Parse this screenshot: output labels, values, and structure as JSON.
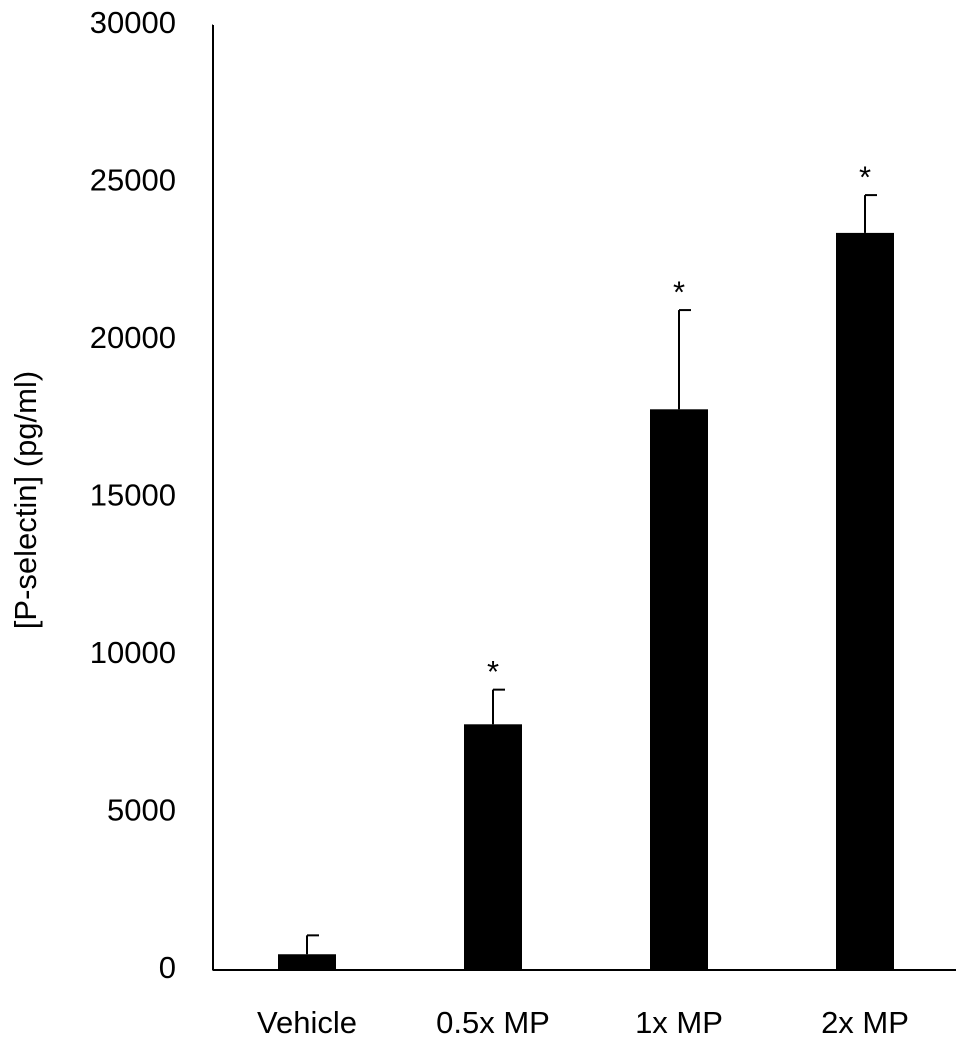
{
  "chart_data": {
    "type": "bar",
    "y_label": "[P-selectin] (pg/ml)",
    "categories": [
      "Vehicle",
      "0.5x MP",
      "1x MP",
      "2x MP"
    ],
    "values": [
      500,
      7800,
      17800,
      23400
    ],
    "errors": [
      600,
      1100,
      3150,
      1200
    ],
    "significance": [
      null,
      "*",
      "*",
      "*"
    ],
    "color": "#000000",
    "ylim": [
      0,
      30000
    ],
    "yticks": [
      0,
      5000,
      10000,
      15000,
      20000,
      25000,
      30000
    ],
    "grid": false
  }
}
